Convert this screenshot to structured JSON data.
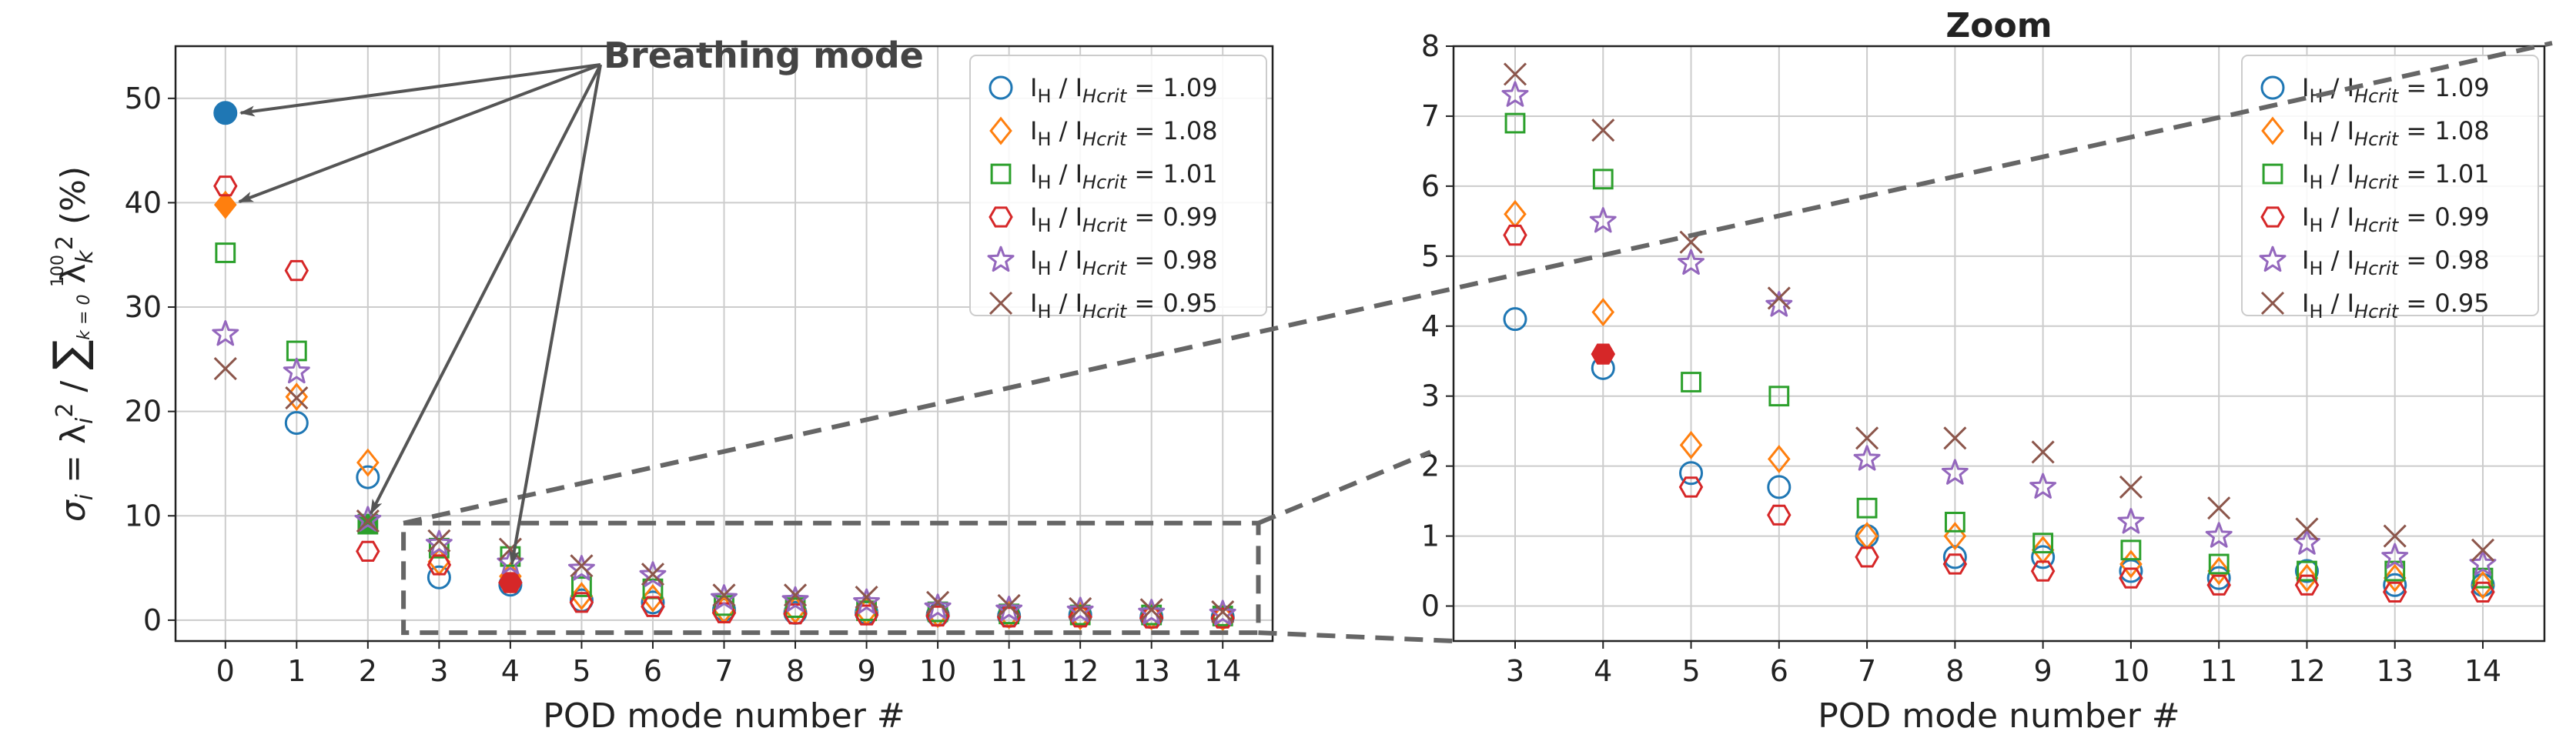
{
  "figure": {
    "annotation": "Breathing mode",
    "colors": {
      "c109": "#1f77b4",
      "c108": "#ff7f0e",
      "c101": "#2ca02c",
      "c099": "#d62728",
      "c098": "#9467bd",
      "c095": "#8c564b",
      "grid": "#cccccc",
      "dash": "#666666"
    }
  },
  "chart_data": [
    {
      "type": "scatter",
      "panel": "left",
      "title": "",
      "xlabel": "POD mode number #",
      "ylabel_parts": {
        "sigma": "σ",
        "i": "i",
        "eq": "= λ",
        "k": "k",
        "sum_sub": "k = 0",
        "sum_sup": "100",
        "pct": "(%)"
      },
      "xlim": [
        -0.7,
        14.7
      ],
      "ylim": [
        -2,
        55
      ],
      "xticks": [
        0,
        1,
        2,
        3,
        4,
        5,
        6,
        7,
        8,
        9,
        10,
        11,
        12,
        13,
        14
      ],
      "yticks": [
        0,
        10,
        20,
        30,
        40,
        50
      ],
      "grid": true,
      "legend_position": "top-right",
      "x": [
        0,
        1,
        2,
        3,
        4,
        5,
        6,
        7,
        8,
        9,
        10,
        11,
        12,
        13,
        14
      ],
      "series": [
        {
          "name": "I<sub>H</sub> / I<sub>Hcrit</sub> = 1.09",
          "legend": {
            "a": "I",
            "a_sub": "H",
            "b": " / I",
            "b_sub": "Hcrit",
            "c": " = 1.09"
          },
          "marker": "circle",
          "color": "#1f77b4",
          "filled_index": 0,
          "values": [
            48.6,
            18.9,
            13.7,
            4.1,
            3.4,
            1.9,
            1.7,
            1.0,
            0.7,
            0.7,
            0.5,
            0.4,
            0.5,
            0.3,
            0.3
          ]
        },
        {
          "name": "I<sub>H</sub> / I<sub>Hcrit</sub> = 1.08",
          "legend": {
            "a": "I",
            "a_sub": "H",
            "b": " / I",
            "b_sub": "Hcrit",
            "c": " = 1.08"
          },
          "marker": "diamond",
          "color": "#ff7f0e",
          "filled_index": 0,
          "values": [
            39.8,
            21.4,
            15.1,
            5.6,
            4.2,
            2.3,
            2.1,
            1.0,
            1.0,
            0.8,
            0.6,
            0.5,
            0.4,
            0.4,
            0.3
          ]
        },
        {
          "name": "I<sub>H</sub> / I<sub>Hcrit</sub> = 1.01",
          "legend": {
            "a": "I",
            "a_sub": "H",
            "b": " / I",
            "b_sub": "Hcrit",
            "c": " = 1.01"
          },
          "marker": "square",
          "color": "#2ca02c",
          "filled_index": 2,
          "values": [
            35.2,
            25.8,
            9.2,
            6.9,
            6.1,
            3.2,
            3.0,
            1.4,
            1.2,
            0.9,
            0.8,
            0.6,
            0.5,
            0.5,
            0.4
          ]
        },
        {
          "name": "I<sub>H</sub> / I<sub>Hcrit</sub> = 0.99",
          "legend": {
            "a": "I",
            "a_sub": "H",
            "b": " / I",
            "b_sub": "Hcrit",
            "c": " = 0.99"
          },
          "marker": "hexagon",
          "color": "#d62728",
          "filled_index": 4,
          "values": [
            41.6,
            33.5,
            6.6,
            5.3,
            3.6,
            1.7,
            1.3,
            0.7,
            0.6,
            0.5,
            0.4,
            0.3,
            0.3,
            0.2,
            0.2
          ]
        },
        {
          "name": "I<sub>H</sub> / I<sub>Hcrit</sub> = 0.98",
          "legend": {
            "a": "I",
            "a_sub": "H",
            "b": " / I",
            "b_sub": "Hcrit",
            "c": " = 0.98"
          },
          "marker": "star",
          "color": "#9467bd",
          "filled_index": -1,
          "values": [
            27.4,
            23.8,
            9.6,
            7.3,
            5.5,
            4.9,
            4.3,
            2.1,
            1.9,
            1.7,
            1.2,
            1.0,
            0.9,
            0.7,
            0.6
          ]
        },
        {
          "name": "I<sub>H</sub> / I<sub>Hcrit</sub> = 0.95",
          "legend": {
            "a": "I",
            "a_sub": "H",
            "b": " / I",
            "b_sub": "Hcrit",
            "c": " = 0.95"
          },
          "marker": "x",
          "color": "#8c564b",
          "filled_index": -1,
          "values": [
            24.1,
            21.3,
            9.5,
            7.6,
            6.8,
            5.2,
            4.4,
            2.4,
            2.4,
            2.2,
            1.7,
            1.4,
            1.1,
            1.0,
            0.8
          ]
        }
      ]
    },
    {
      "type": "scatter",
      "panel": "right",
      "title": "Zoom",
      "xlabel": "POD mode number #",
      "ylabel": "",
      "xlim": [
        2.3,
        14.7
      ],
      "ylim": [
        -0.5,
        8
      ],
      "xticks": [
        3,
        4,
        5,
        6,
        7,
        8,
        9,
        10,
        11,
        12,
        13,
        14
      ],
      "yticks": [
        0,
        1,
        2,
        3,
        4,
        5,
        6,
        7,
        8
      ],
      "grid": true,
      "legend_position": "top-right",
      "note": "same series as left panel, modes 3-14"
    }
  ]
}
